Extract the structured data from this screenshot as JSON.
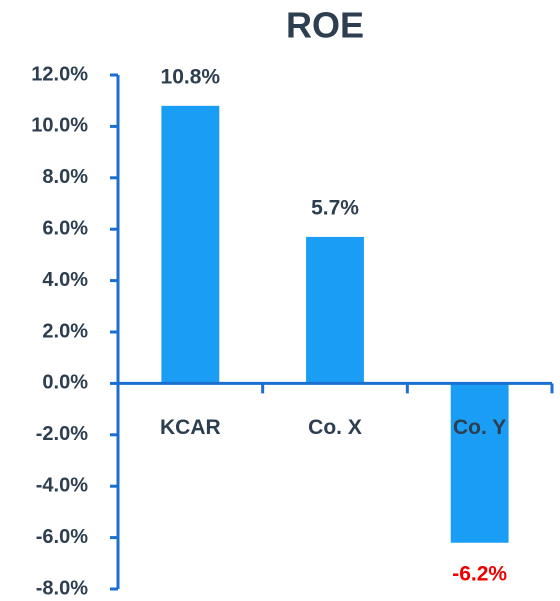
{
  "chart_data": {
    "type": "bar",
    "title": "ROE",
    "categories": [
      "KCAR",
      "Co. X",
      "Co. Y"
    ],
    "values": [
      10.8,
      5.7,
      -6.2
    ],
    "value_labels": [
      "10.8%",
      "5.7%",
      "-6.2%"
    ],
    "color": "#1a9ef5",
    "axis_color": "#1a6fd0",
    "text_color": "#2d3e50",
    "negative_label_color": "#ee0000",
    "ylim": [
      -8,
      12
    ],
    "yticks": [
      {
        "value": -8,
        "label": "-8.0%"
      },
      {
        "value": -6,
        "label": "-6.0%"
      },
      {
        "value": -4,
        "label": "-4.0%"
      },
      {
        "value": -2,
        "label": "-2.0%"
      },
      {
        "value": 0,
        "label": "0.0%"
      },
      {
        "value": 2,
        "label": "2.0%"
      },
      {
        "value": 4,
        "label": "4.0%"
      },
      {
        "value": 6,
        "label": "6.0%"
      },
      {
        "value": 8,
        "label": "8.0%"
      },
      {
        "value": 10,
        "label": "10.0%"
      },
      {
        "value": 12,
        "label": "12.0%"
      }
    ],
    "grid": false
  }
}
